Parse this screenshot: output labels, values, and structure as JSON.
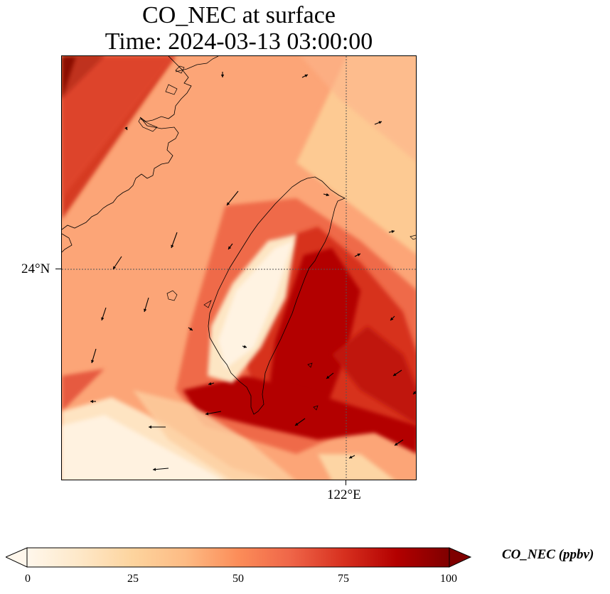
{
  "title": {
    "line1": "CO_NEC at surface",
    "line2": "Time: 2024-03-13 03:00:00"
  },
  "axes": {
    "lat_label": "24°N",
    "lon_label": "122°E"
  },
  "colorbar": {
    "label": "CO_NEC (ppbv)",
    "ticks": [
      "0",
      "25",
      "50",
      "75",
      "100"
    ],
    "min": 0,
    "max": 100,
    "extend": "both",
    "colormap": "OrRd",
    "colors": [
      "#fff7ec",
      "#fee8c8",
      "#fdd49e",
      "#fdbb84",
      "#fc8d59",
      "#ef6548",
      "#d7301f",
      "#b30000",
      "#7f0000"
    ]
  },
  "map": {
    "gridlines": "dotted",
    "wind_vectors": true,
    "coastlines": true
  }
}
